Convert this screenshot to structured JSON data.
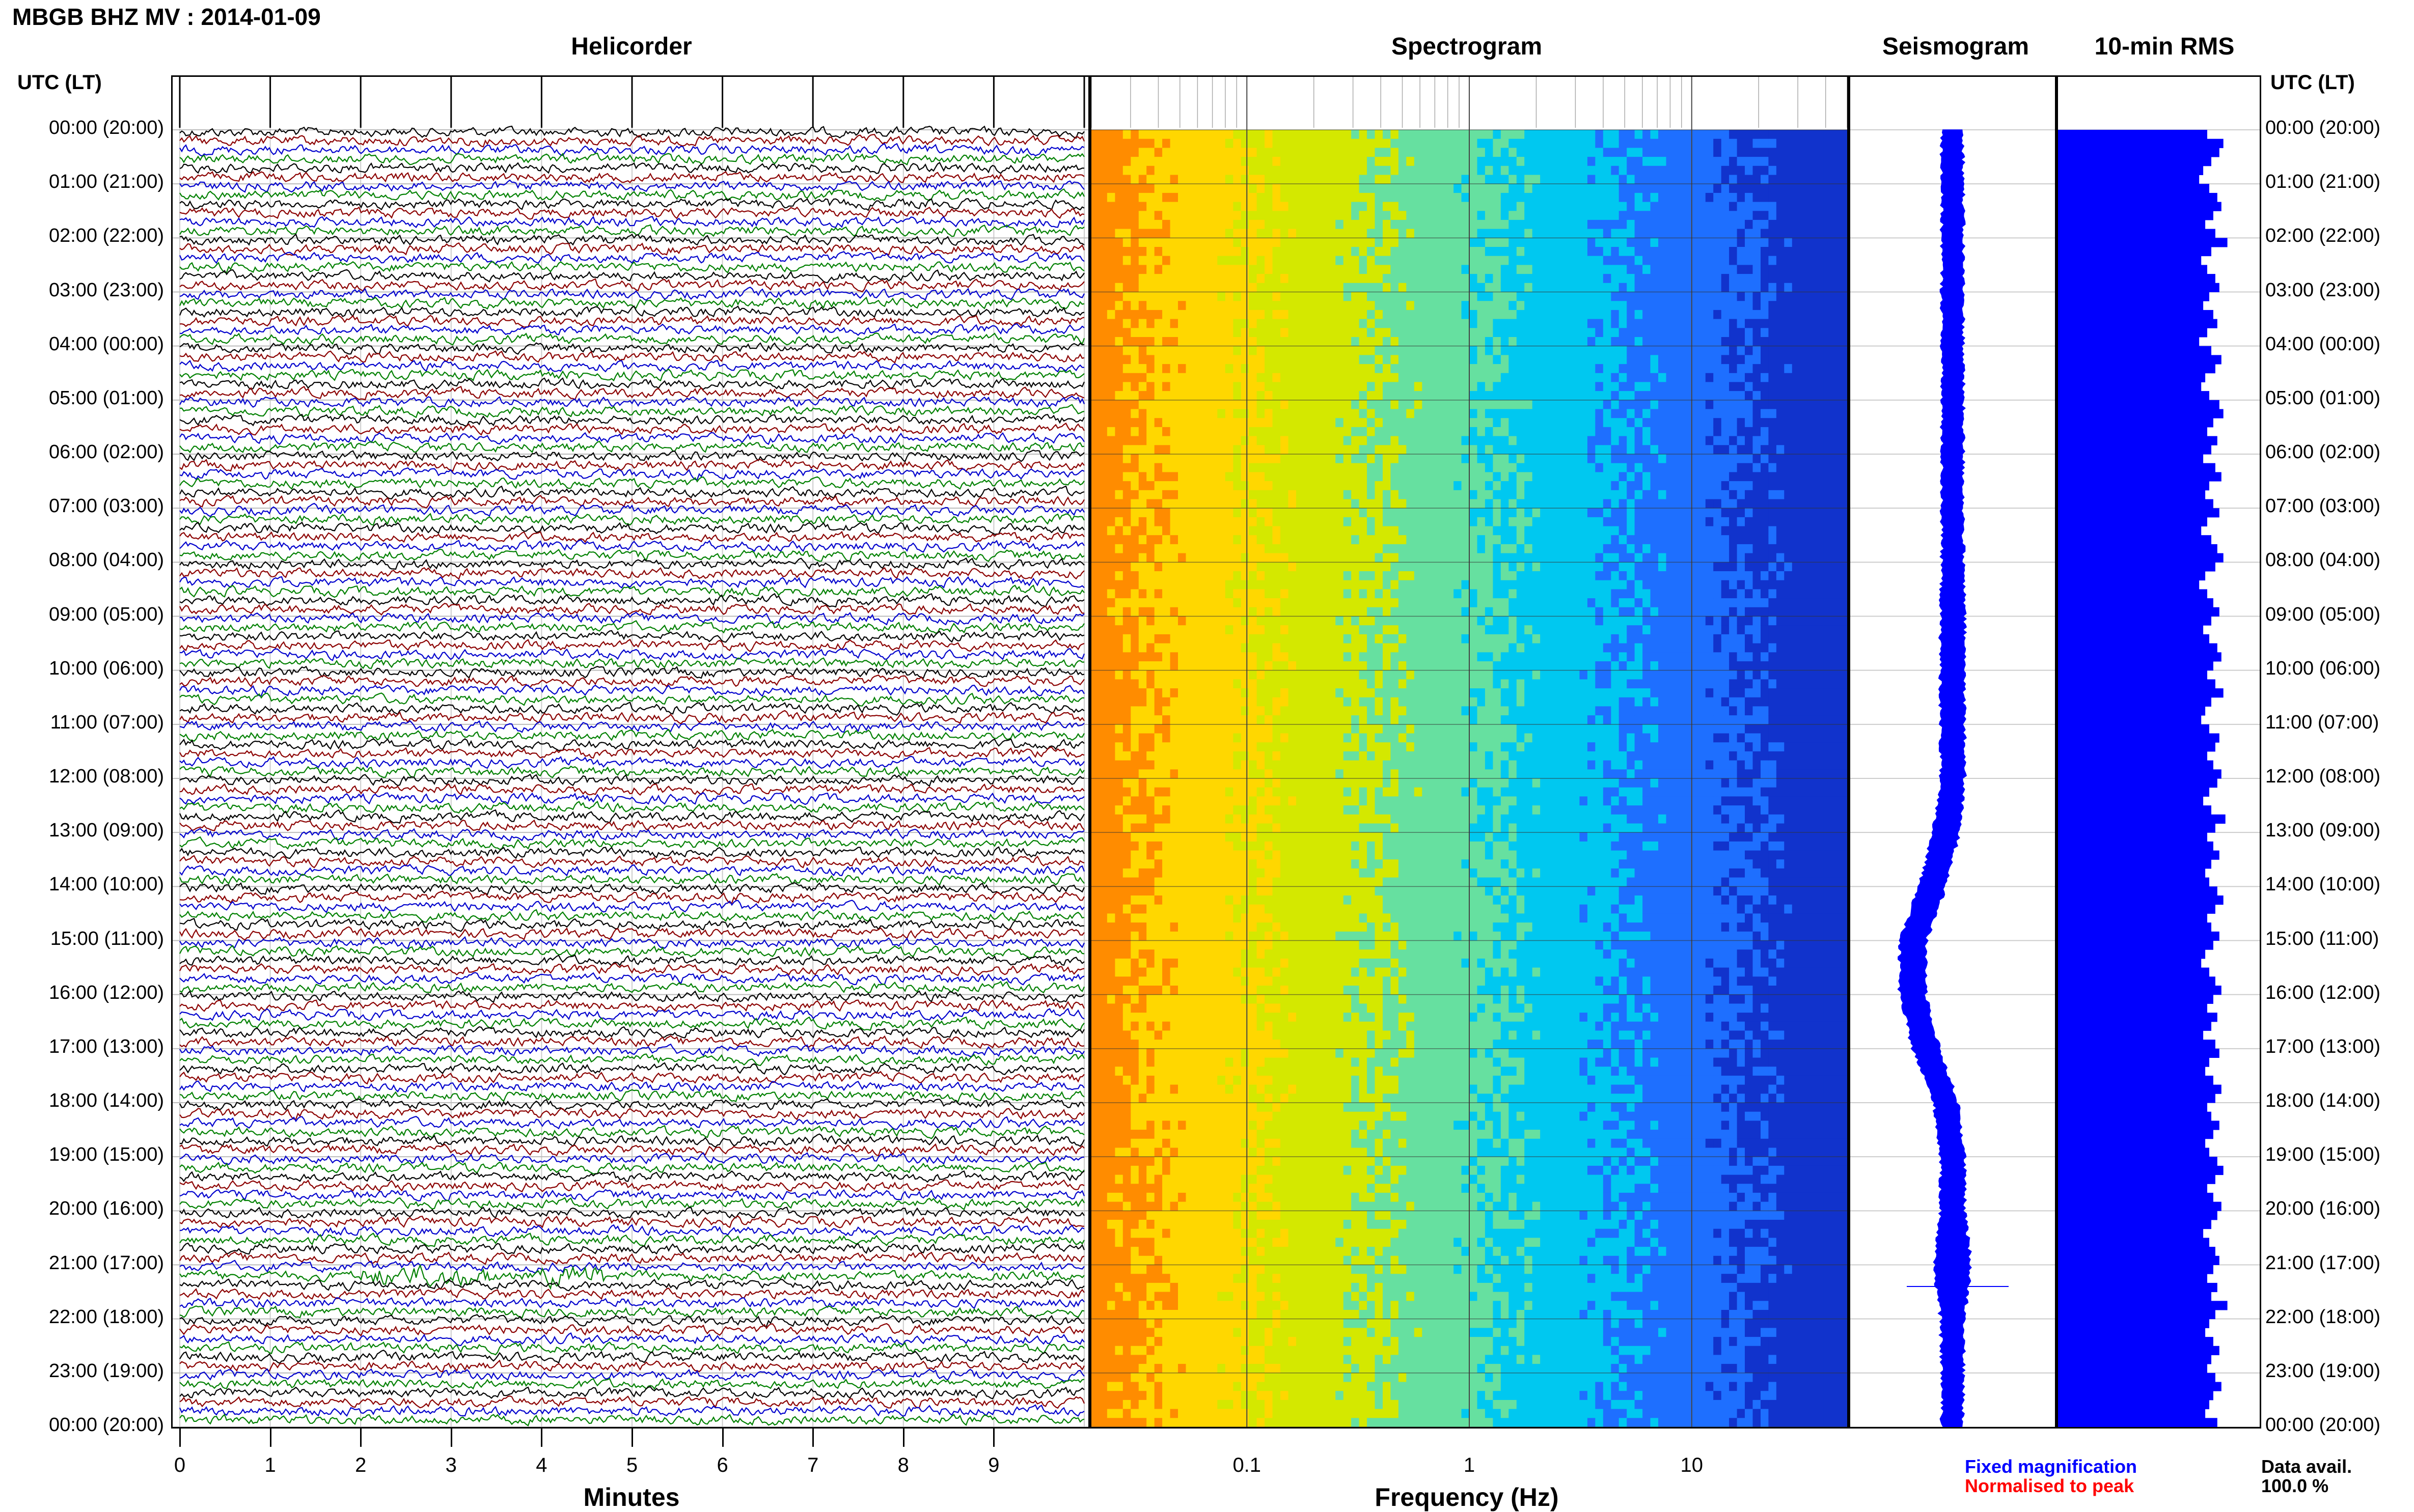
{
  "title": "MBGB BHZ MV : 2014-01-09",
  "panels": {
    "helicorder": "Helicorder",
    "spectrogram": "Spectrogram",
    "seismogram": "Seismogram",
    "rms": "10-min RMS"
  },
  "time_axis_header": "UTC (LT)",
  "time_labels": [
    "00:00 (20:00)",
    "01:00 (21:00)",
    "02:00 (22:00)",
    "03:00 (23:00)",
    "04:00 (00:00)",
    "05:00 (01:00)",
    "06:00 (02:00)",
    "07:00 (03:00)",
    "08:00 (04:00)",
    "09:00 (05:00)",
    "10:00 (06:00)",
    "11:00 (07:00)",
    "12:00 (08:00)",
    "13:00 (09:00)",
    "14:00 (10:00)",
    "15:00 (11:00)",
    "16:00 (12:00)",
    "17:00 (13:00)",
    "18:00 (14:00)",
    "19:00 (15:00)",
    "20:00 (16:00)",
    "21:00 (17:00)",
    "22:00 (18:00)",
    "23:00 (19:00)",
    "00:00 (20:00)"
  ],
  "helicorder_xlabel": "Minutes",
  "helicorder_xticks": [
    "0",
    "1",
    "2",
    "3",
    "4",
    "5",
    "6",
    "7",
    "8",
    "9"
  ],
  "spectrogram_xlabel": "Frequency (Hz)",
  "spectrogram_xticks": [
    "0.1",
    "1",
    "10"
  ],
  "legend": {
    "fixed": "Fixed magnification",
    "normalised": "Normalised to peak",
    "fixed_color": "#0000ff",
    "normalised_color": "#ff0000"
  },
  "data_avail": {
    "label": "Data avail.",
    "value": "100.0 %"
  },
  "colors": {
    "trace_cycle": [
      "#000000",
      "#8b0000",
      "#0000cd",
      "#008000"
    ],
    "rms_bar": "#0000ff",
    "seismogram": "#0000ff"
  },
  "chart_data": [
    {
      "type": "line",
      "title": "Helicorder",
      "xlabel": "Minutes",
      "xlim": [
        0,
        10
      ],
      "ylabel": "UTC (LT)",
      "ylim": [
        "00:00",
        "00:00 +1d"
      ],
      "series_note": "144 traces of 10 minutes each, colors cycle black, dark red, blue, green",
      "events": [
        {
          "time_utc": "21:10",
          "minute_start": 2.0,
          "minute_end": 3.5
        },
        {
          "time_utc": "21:10",
          "minute_start": 4.0,
          "minute_end": 4.7
        }
      ]
    },
    {
      "type": "heatmap",
      "title": "Spectrogram",
      "xlabel": "Frequency (Hz)",
      "x_scale": "log",
      "xlim": [
        0.02,
        50
      ],
      "xticks": [
        0.1,
        1,
        10
      ],
      "colormap": [
        "#ff8c00",
        "#ffd700",
        "#d4e800",
        "#66e0a0",
        "#00c8f0",
        "#1e6fff",
        "#1133cc"
      ]
    },
    {
      "type": "area",
      "title": "Seismogram",
      "description_values": "amplitude envelope per hour (relative)",
      "hours": [
        0,
        1,
        2,
        3,
        4,
        5,
        6,
        7,
        8,
        9,
        10,
        11,
        12,
        13,
        14,
        15,
        16,
        17,
        18,
        19,
        20,
        21,
        22,
        23,
        24
      ],
      "center_offset": [
        0,
        0,
        0,
        0,
        0,
        0,
        0,
        0,
        0,
        0,
        0,
        0,
        0,
        -0.5,
        -1.5,
        -3,
        -3,
        -2,
        -0.5,
        0,
        0,
        0,
        0,
        0,
        0
      ],
      "half_width": [
        0.8,
        0.8,
        0.8,
        0.8,
        0.8,
        0.8,
        0.8,
        0.8,
        0.8,
        0.9,
        0.9,
        0.9,
        0.9,
        1.0,
        1.0,
        1.0,
        1.0,
        1.0,
        0.9,
        0.9,
        0.9,
        1.4,
        0.9,
        0.8,
        0.8
      ]
    },
    {
      "type": "bar",
      "title": "10-min RMS",
      "orientation": "horizontal",
      "xlim": [
        0,
        1
      ],
      "values": [
        0.74,
        0.82,
        0.8,
        0.76,
        0.72,
        0.7,
        0.75,
        0.79,
        0.81,
        0.77,
        0.73,
        0.78,
        0.84,
        0.76,
        0.71,
        0.74,
        0.78,
        0.8,
        0.75,
        0.72,
        0.77,
        0.79,
        0.74,
        0.7,
        0.76,
        0.81,
        0.78,
        0.73,
        0.71,
        0.75,
        0.8,
        0.82,
        0.77,
        0.74,
        0.79,
        0.76,
        0.72,
        0.78,
        0.81,
        0.75,
        0.73,
        0.77,
        0.8,
        0.74,
        0.71,
        0.76,
        0.79,
        0.82,
        0.78,
        0.73,
        0.7,
        0.74,
        0.77,
        0.8,
        0.76,
        0.72,
        0.75,
        0.79,
        0.81,
        0.77,
        0.74,
        0.78,
        0.82,
        0.76,
        0.73,
        0.71,
        0.75,
        0.8,
        0.78,
        0.74,
        0.77,
        0.81,
        0.79,
        0.75,
        0.72,
        0.76,
        0.83,
        0.78,
        0.74,
        0.77,
        0.8,
        0.76,
        0.73,
        0.75,
        0.79,
        0.82,
        0.78,
        0.74,
        0.76,
        0.8,
        0.77,
        0.73,
        0.71,
        0.75,
        0.78,
        0.81,
        0.77,
        0.74,
        0.79,
        0.76,
        0.72,
        0.78,
        0.8,
        0.75,
        0.73,
        0.77,
        0.81,
        0.78,
        0.74,
        0.76,
        0.8,
        0.77,
        0.73,
        0.75,
        0.79,
        0.82,
        0.78,
        0.74,
        0.77,
        0.81,
        0.79,
        0.76,
        0.72,
        0.75,
        0.78,
        0.8,
        0.77,
        0.74,
        0.79,
        0.76,
        0.84,
        0.78,
        0.75,
        0.73,
        0.77,
        0.8,
        0.76,
        0.74,
        0.78,
        0.81,
        0.77,
        0.75,
        0.73,
        0.79
      ]
    }
  ]
}
